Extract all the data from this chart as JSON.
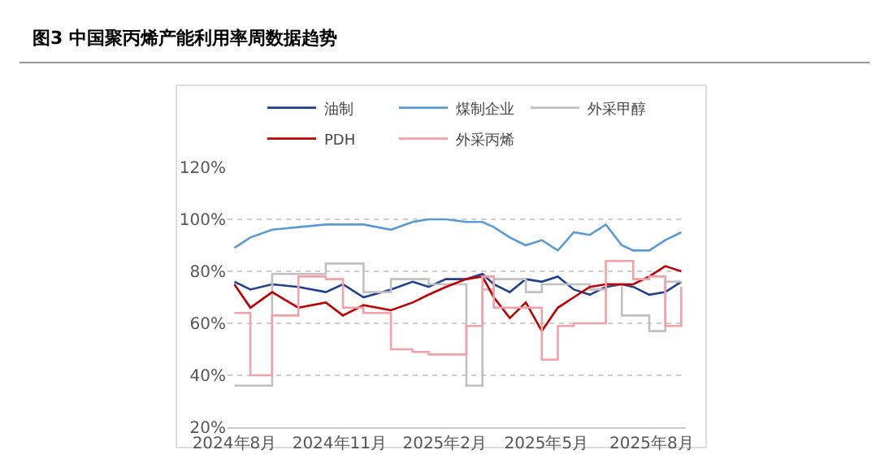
{
  "chart_data": {
    "type": "line",
    "title": "图3  中国聚丙烯产能利用率周数据趋势",
    "x": [
      "2024-08-01",
      "2024-08-15",
      "2024-09-03",
      "2024-09-26",
      "2024-10-20",
      "2024-11-04",
      "2024-11-22",
      "2024-12-16",
      "2025-01-04",
      "2025-01-18",
      "2025-02-02",
      "2025-02-20",
      "2025-03-06",
      "2025-03-16",
      "2025-03-30",
      "2025-04-13",
      "2025-04-27",
      "2025-05-11",
      "2025-05-25",
      "2025-06-08",
      "2025-06-22",
      "2025-07-06",
      "2025-07-16",
      "2025-07-30",
      "2025-08-13",
      "2025-08-27"
    ],
    "series": [
      {
        "name": "油制",
        "color": "#1f3f8f",
        "values": [
          76,
          73,
          75,
          74,
          72,
          75,
          70,
          73,
          76,
          74,
          77,
          77,
          79,
          75,
          72,
          77,
          76,
          78,
          73,
          71,
          74,
          75,
          74,
          71,
          72,
          76
        ]
      },
      {
        "name": "煤制企业",
        "color": "#5b9bd5",
        "values": [
          89,
          93,
          96,
          97,
          98,
          98,
          98,
          96,
          99,
          100,
          100,
          99,
          99,
          97,
          93,
          90,
          92,
          88,
          95,
          94,
          98,
          90,
          88,
          88,
          92,
          95
        ]
      },
      {
        "name": "外采甲醇",
        "color": "#c0c0c0",
        "type": "step",
        "values": [
          36,
          36,
          79,
          79,
          83,
          83,
          72,
          77,
          77,
          75,
          75,
          36,
          73,
          77,
          77,
          72,
          75,
          75,
          75,
          73,
          75,
          63,
          63,
          57,
          76,
          76
        ]
      },
      {
        "name": "PDH",
        "color": "#c00000",
        "values": [
          75,
          66,
          72,
          66,
          68,
          63,
          67,
          65,
          68,
          71,
          74,
          77,
          78,
          70,
          62,
          68,
          57,
          66,
          70,
          74,
          75,
          75,
          75,
          78,
          82,
          80
        ]
      },
      {
        "name": "外采丙烯",
        "color": "#f4a0a8",
        "type": "step",
        "values": [
          64,
          40,
          63,
          78,
          77,
          66,
          64,
          50,
          49,
          48,
          48,
          59,
          78,
          66,
          66,
          66,
          46,
          59,
          60,
          60,
          84,
          84,
          77,
          78,
          59,
          74
        ]
      }
    ],
    "xlim": [
      "2024-07-26",
      "2025-08-31"
    ],
    "xticks": [
      {
        "value": "2024-08-01",
        "label": "2024年8月"
      },
      {
        "value": "2024-11-01",
        "label": "2024年11月"
      },
      {
        "value": "2025-02-01",
        "label": "2025年2月"
      },
      {
        "value": "2025-05-01",
        "label": "2025年5月"
      },
      {
        "value": "2025-08-01",
        "label": "2025年8月"
      }
    ],
    "ylim": [
      20,
      120
    ],
    "yticks": [
      {
        "value": 20,
        "label": "20%"
      },
      {
        "value": 40,
        "label": "40%"
      },
      {
        "value": 60,
        "label": "60%"
      },
      {
        "value": 80,
        "label": "80%"
      },
      {
        "value": 100,
        "label": "100%"
      },
      {
        "value": 120,
        "label": "120%"
      }
    ],
    "grid": "y",
    "legend": "top",
    "marker": "none",
    "line_style": "solid"
  }
}
